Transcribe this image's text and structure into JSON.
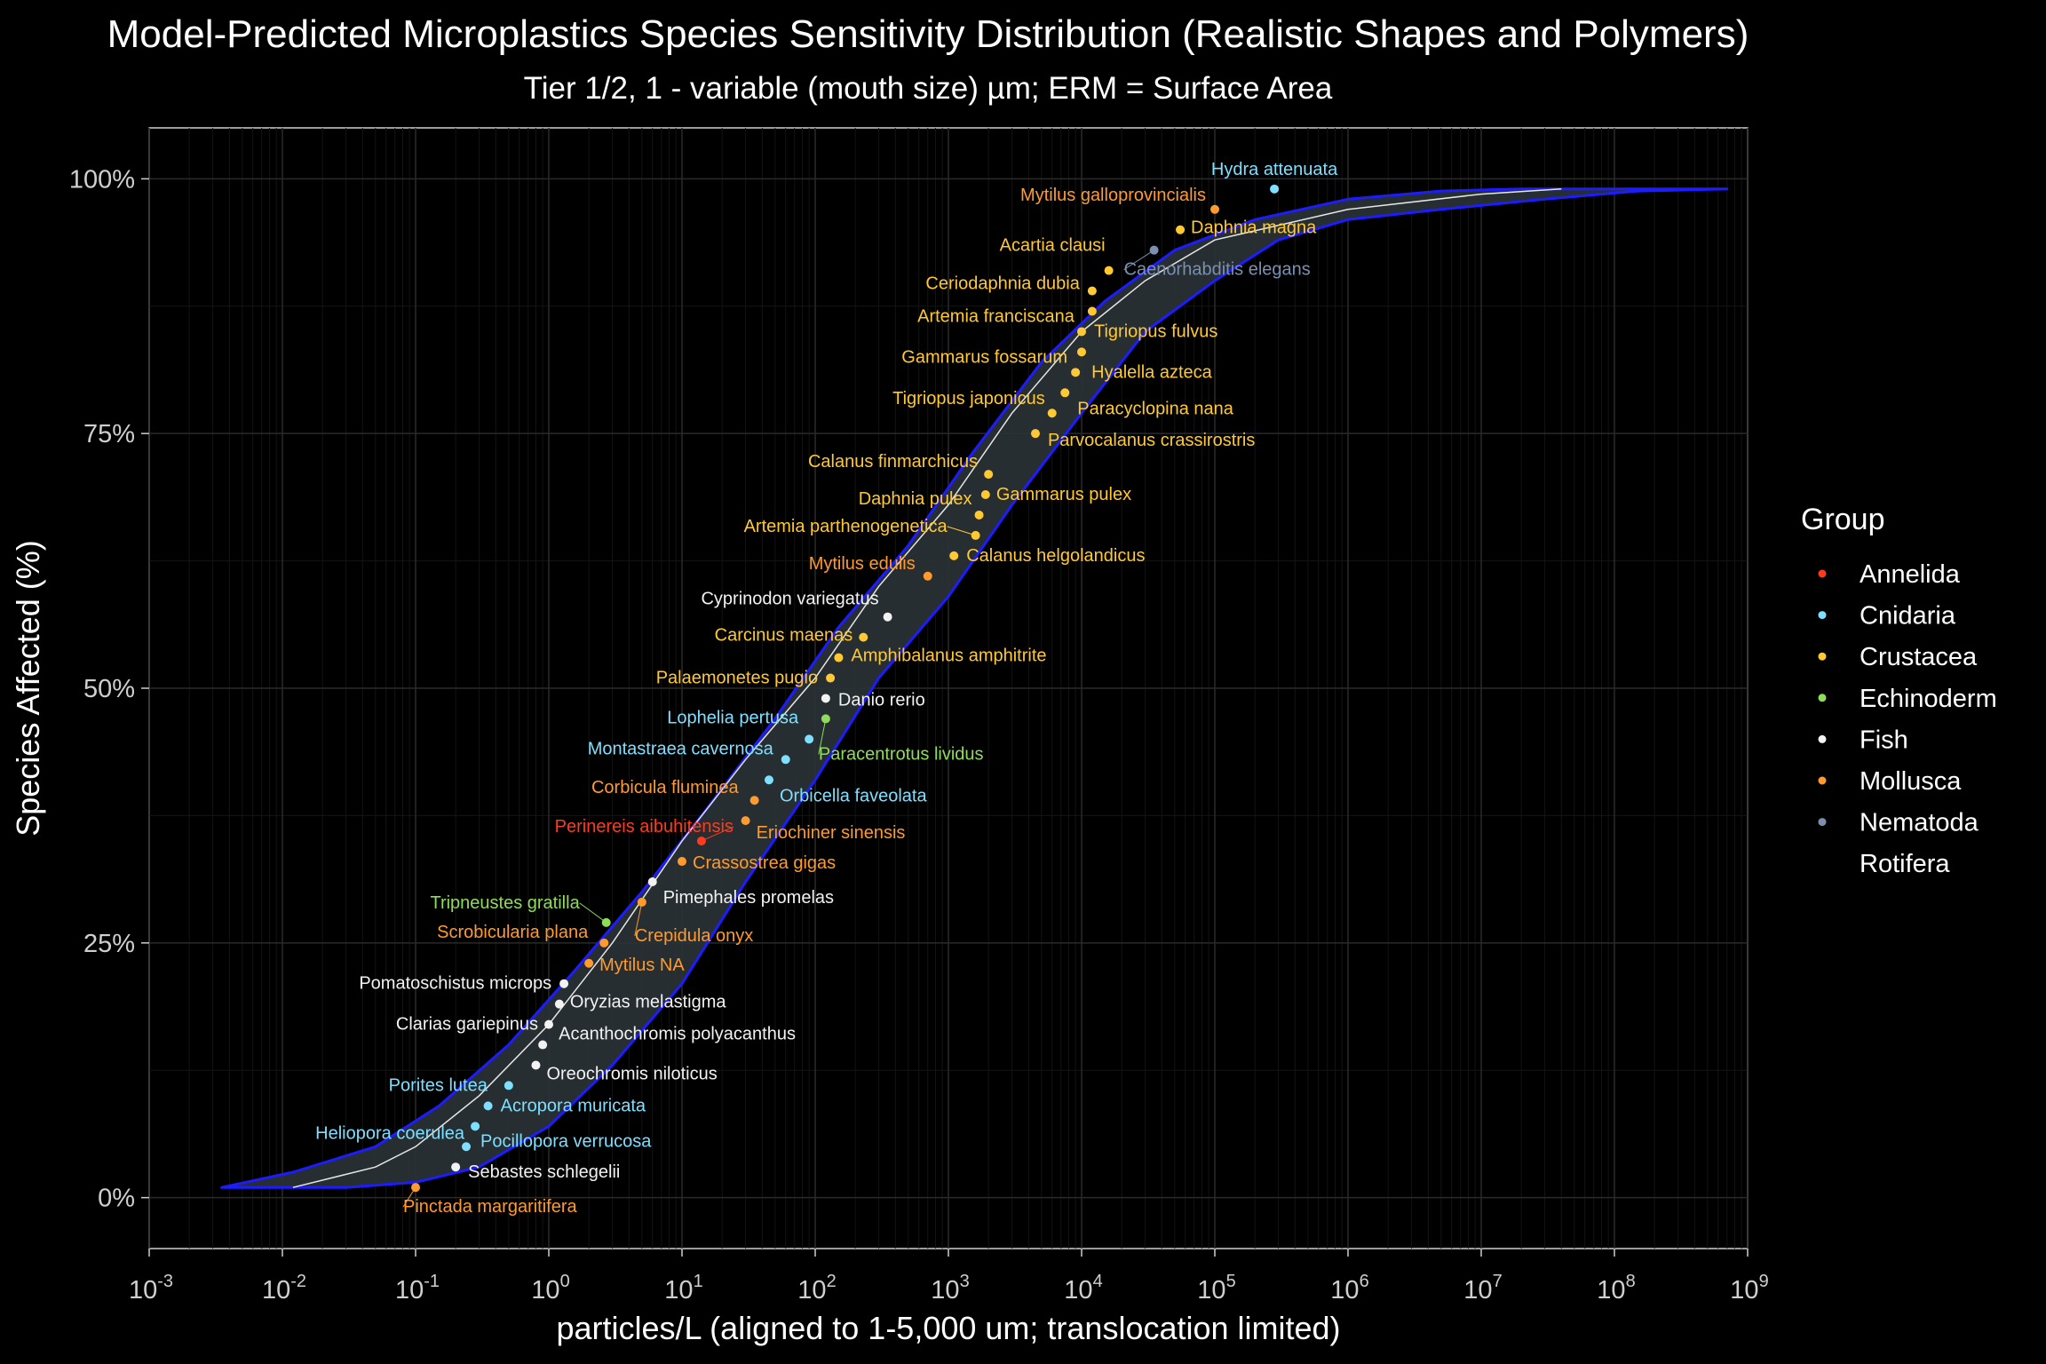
{
  "chart_data": {
    "type": "scatter",
    "title": "Model-Predicted Microplastics Species Sensitivity Distribution (Realistic Shapes and Polymers)",
    "subtitle": "Tier 1/2, 1 - variable (mouth size) µm; ERM = Surface Area",
    "xlabel": "particles/L (aligned to 1-5,000 um; translocation limited)",
    "ylabel": "Species Affected (%)",
    "xscale": "log10",
    "xlim": [
      0.001,
      1000000000
    ],
    "ylim": [
      -5,
      105
    ],
    "x_tick_exponents": [
      "-3",
      "-2",
      "-1",
      "0",
      "1",
      "2",
      "3",
      "4",
      "5",
      "6",
      "7",
      "8",
      "9"
    ],
    "y_ticks": [
      0,
      25,
      50,
      75,
      100
    ],
    "y_tick_labels": [
      "0%",
      "25%",
      "50%",
      "75%",
      "100%"
    ],
    "legend": {
      "title": "Group",
      "position": "right",
      "entries": [
        {
          "name": "Annelida",
          "color": "#ff3b1f"
        },
        {
          "name": "Cnidaria",
          "color": "#7fdfff"
        },
        {
          "name": "Crustacea",
          "color": "#ffc933"
        },
        {
          "name": "Echinoderm",
          "color": "#8fdc5a"
        },
        {
          "name": "Fish",
          "color": "#f2f2f2"
        },
        {
          "name": "Mollusca",
          "color": "#ff9a2e"
        },
        {
          "name": "Nematoda",
          "color": "#7b8fb0"
        },
        {
          "name": "Rotifera",
          "color": "#000000"
        }
      ]
    },
    "fitted_curve": {
      "x": [
        0.012,
        0.05,
        0.1,
        0.3,
        1,
        3,
        10,
        30,
        100,
        300,
        1000,
        3000,
        10000,
        30000,
        100000,
        1000000,
        10000000,
        40000000
      ],
      "y": [
        1,
        3,
        5,
        10,
        17,
        25,
        35,
        43,
        51,
        60,
        68,
        77,
        85,
        90,
        94,
        97,
        98.5,
        99
      ]
    },
    "confidence_band": {
      "upper_x": [
        0.0035,
        0.012,
        0.05,
        0.15,
        0.5,
        1.5,
        5,
        15,
        50,
        150,
        500,
        1500,
        5000,
        15000,
        50000,
        200000,
        1000000,
        5000000,
        20000000,
        100000000,
        700000000
      ],
      "upper_y": [
        1,
        2.5,
        5,
        9,
        15,
        22,
        30,
        38,
        47,
        56,
        64,
        73,
        82,
        88,
        93,
        96,
        98,
        98.8,
        99,
        99,
        99
      ],
      "lower_x": [
        0.0035,
        0.03,
        0.1,
        0.3,
        1,
        3,
        10,
        30,
        100,
        300,
        1000,
        3000,
        10000,
        30000,
        100000,
        300000,
        1000000,
        5000000,
        30000000,
        150000000,
        700000000
      ],
      "lower_y": [
        1,
        1,
        1.5,
        3,
        7,
        13,
        21,
        31,
        41,
        51,
        59,
        68,
        77,
        85,
        90,
        94,
        96,
        97,
        98,
        98.8,
        99
      ]
    },
    "points": [
      {
        "label": "Hydra attenuata",
        "group": "Cnidaria",
        "x": 280000,
        "y": 99,
        "anchor": "middle",
        "ldx": 0,
        "ldy": -16
      },
      {
        "label": "Mytilus galloprovincialis",
        "group": "Mollusca",
        "x": 100000,
        "y": 97,
        "anchor": "end",
        "ldx": -10,
        "ldy": -10
      },
      {
        "label": "Daphnia magna",
        "group": "Crustacea",
        "x": 55000,
        "y": 95,
        "anchor": "start",
        "ldx": 12,
        "ldy": 4
      },
      {
        "label": "Acartia clausi",
        "group": "Crustacea",
        "x": 16000,
        "y": 91,
        "anchor": "end",
        "ldx": -4,
        "ldy": -22
      },
      {
        "label": "Caenorhabditis elegans",
        "group": "Nematoda",
        "x": 35000,
        "y": 93,
        "anchor": "start",
        "ldx": -34,
        "ldy": 28
      },
      {
        "label": "Ceriodaphnia dubia",
        "group": "Crustacea",
        "x": 12000,
        "y": 89,
        "anchor": "end",
        "ldx": -14,
        "ldy": -2
      },
      {
        "label": "Artemia franciscana",
        "group": "Crustacea",
        "x": 12000,
        "y": 87,
        "anchor": "end",
        "ldx": -20,
        "ldy": 12
      },
      {
        "label": "Tigriopus fulvus",
        "group": "Crustacea",
        "x": 10000,
        "y": 85,
        "anchor": "start",
        "ldx": 14,
        "ldy": 6
      },
      {
        "label": "Gammarus fossarum",
        "group": "Crustacea",
        "x": 10000,
        "y": 83,
        "anchor": "end",
        "ldx": -16,
        "ldy": 12
      },
      {
        "label": "Hyalella azteca",
        "group": "Crustacea",
        "x": 9000,
        "y": 81,
        "anchor": "start",
        "ldx": 18,
        "ldy": 6
      },
      {
        "label": "Paracyclopina nana",
        "group": "Crustacea",
        "x": 7500,
        "y": 79,
        "anchor": "start",
        "ldx": 14,
        "ldy": 24
      },
      {
        "label": "Tigriopus japonicus",
        "group": "Crustacea",
        "x": 6000,
        "y": 77,
        "anchor": "end",
        "ldx": -8,
        "ldy": -10
      },
      {
        "label": "Parvocalanus crassirostris",
        "group": "Crustacea",
        "x": 4500,
        "y": 75,
        "anchor": "start",
        "ldx": 14,
        "ldy": 14
      },
      {
        "label": "Calanus finmarchicus",
        "group": "Crustacea",
        "x": 2000,
        "y": 71,
        "anchor": "end",
        "ldx": -12,
        "ldy": -8
      },
      {
        "label": "Gammarus pulex",
        "group": "Crustacea",
        "x": 1900,
        "y": 69,
        "anchor": "start",
        "ldx": 12,
        "ldy": 6
      },
      {
        "label": "Daphnia pulex",
        "group": "Crustacea",
        "x": 1700,
        "y": 67,
        "anchor": "end",
        "ldx": -8,
        "ldy": -12
      },
      {
        "label": "Artemia parthenogenetica",
        "group": "Crustacea",
        "x": 1600,
        "y": 65,
        "anchor": "end",
        "ldx": -32,
        "ldy": -4
      },
      {
        "label": "Calanus helgolandicus",
        "group": "Crustacea",
        "x": 1100,
        "y": 63,
        "anchor": "start",
        "ldx": 14,
        "ldy": 6
      },
      {
        "label": "Mytilus edulis",
        "group": "Mollusca",
        "x": 700,
        "y": 61,
        "anchor": "end",
        "ldx": -14,
        "ldy": -8
      },
      {
        "label": "Cyprinodon variegatus",
        "group": "Fish",
        "x": 350,
        "y": 57,
        "anchor": "end",
        "ldx": -10,
        "ldy": -14
      },
      {
        "label": "Carcinus maenas",
        "group": "Crustacea",
        "x": 230,
        "y": 55,
        "anchor": "end",
        "ldx": -12,
        "ldy": 4
      },
      {
        "label": "Amphibalanus amphitrite",
        "group": "Crustacea",
        "x": 150,
        "y": 53,
        "anchor": "start",
        "ldx": 14,
        "ldy": 4
      },
      {
        "label": "Palaemonetes pugio",
        "group": "Crustacea",
        "x": 130,
        "y": 51,
        "anchor": "end",
        "ldx": -14,
        "ldy": 6
      },
      {
        "label": "Danio rerio",
        "group": "Fish",
        "x": 120,
        "y": 49,
        "anchor": "start",
        "ldx": 14,
        "ldy": 8
      },
      {
        "label": "Lophelia pertusa",
        "group": "Cnidaria",
        "x": 90,
        "y": 45,
        "anchor": "end",
        "ldx": -12,
        "ldy": -18
      },
      {
        "label": "Paracentrotus lividus",
        "group": "Echinoderm",
        "x": 120,
        "y": 47,
        "anchor": "start",
        "ldx": -8,
        "ldy": 46
      },
      {
        "label": "Montastraea cavernosa",
        "group": "Cnidaria",
        "x": 60,
        "y": 43,
        "anchor": "end",
        "ldx": -14,
        "ldy": -6
      },
      {
        "label": "Orbicella faveolata",
        "group": "Cnidaria",
        "x": 45,
        "y": 41,
        "anchor": "start",
        "ldx": 12,
        "ldy": 24
      },
      {
        "label": "Corbicula fluminea",
        "group": "Mollusca",
        "x": 35,
        "y": 39,
        "anchor": "end",
        "ldx": -18,
        "ldy": -8
      },
      {
        "label": "Eriochiner sinensis",
        "group": "Mollusca",
        "x": 30,
        "y": 37,
        "anchor": "start",
        "ldx": 12,
        "ldy": 20
      },
      {
        "label": "Perinereis aibuhitensis",
        "group": "Annelida",
        "x": 14,
        "y": 35,
        "anchor": "end",
        "ldx": 36,
        "ldy": -10
      },
      {
        "label": "Crassostrea gigas",
        "group": "Mollusca",
        "x": 10,
        "y": 33,
        "anchor": "start",
        "ldx": 12,
        "ldy": 8
      },
      {
        "label": "Pimephales promelas",
        "group": "Fish",
        "x": 6,
        "y": 31,
        "anchor": "start",
        "ldx": 12,
        "ldy": 24
      },
      {
        "label": "Tripneustes gratilla",
        "group": "Echinoderm",
        "x": 2.7,
        "y": 27,
        "anchor": "end",
        "ldx": -30,
        "ldy": -16
      },
      {
        "label": "Crepidula onyx",
        "group": "Mollusca",
        "x": 5,
        "y": 29,
        "anchor": "start",
        "ldx": -8,
        "ldy": 44
      },
      {
        "label": "Scrobicularia plana",
        "group": "Mollusca",
        "x": 2.6,
        "y": 25,
        "anchor": "end",
        "ldx": -18,
        "ldy": -6
      },
      {
        "label": "Mytilus NA",
        "group": "Mollusca",
        "x": 2,
        "y": 23,
        "anchor": "start",
        "ldx": 12,
        "ldy": 8
      },
      {
        "label": "Pomatoschistus microps",
        "group": "Fish",
        "x": 1.3,
        "y": 21,
        "anchor": "end",
        "ldx": -14,
        "ldy": 6
      },
      {
        "label": "Oryzias melastigma",
        "group": "Fish",
        "x": 1.2,
        "y": 19,
        "anchor": "start",
        "ldx": 12,
        "ldy": 4
      },
      {
        "label": "Clarias gariepinus",
        "group": "Fish",
        "x": 1,
        "y": 17,
        "anchor": "end",
        "ldx": -12,
        "ldy": 6
      },
      {
        "label": "Acanthochromis polyacanthus",
        "group": "Fish",
        "x": 0.9,
        "y": 15,
        "anchor": "start",
        "ldx": 18,
        "ldy": -6
      },
      {
        "label": "Oreochromis niloticus",
        "group": "Fish",
        "x": 0.8,
        "y": 13,
        "anchor": "start",
        "ldx": 12,
        "ldy": 16
      },
      {
        "label": "Porites lutea",
        "group": "Cnidaria",
        "x": 0.5,
        "y": 11,
        "anchor": "end",
        "ldx": -24,
        "ldy": 6
      },
      {
        "label": "Acropora muricata",
        "group": "Cnidaria",
        "x": 0.35,
        "y": 9,
        "anchor": "start",
        "ldx": 14,
        "ldy": 6
      },
      {
        "label": "Heliopora coerulea",
        "group": "Cnidaria",
        "x": 0.28,
        "y": 7,
        "anchor": "end",
        "ldx": -12,
        "ldy": 14
      },
      {
        "label": "Pocillopora verrucosa",
        "group": "Cnidaria",
        "x": 0.24,
        "y": 5,
        "anchor": "start",
        "ldx": 16,
        "ldy": 0
      },
      {
        "label": "Sebastes schlegelii",
        "group": "Fish",
        "x": 0.2,
        "y": 3,
        "anchor": "start",
        "ldx": 14,
        "ldy": 12
      },
      {
        "label": "Pinctada margaritifera",
        "group": "Mollusca",
        "x": 0.1,
        "y": 1,
        "anchor": "start",
        "ldx": -14,
        "ldy": 28
      }
    ]
  }
}
